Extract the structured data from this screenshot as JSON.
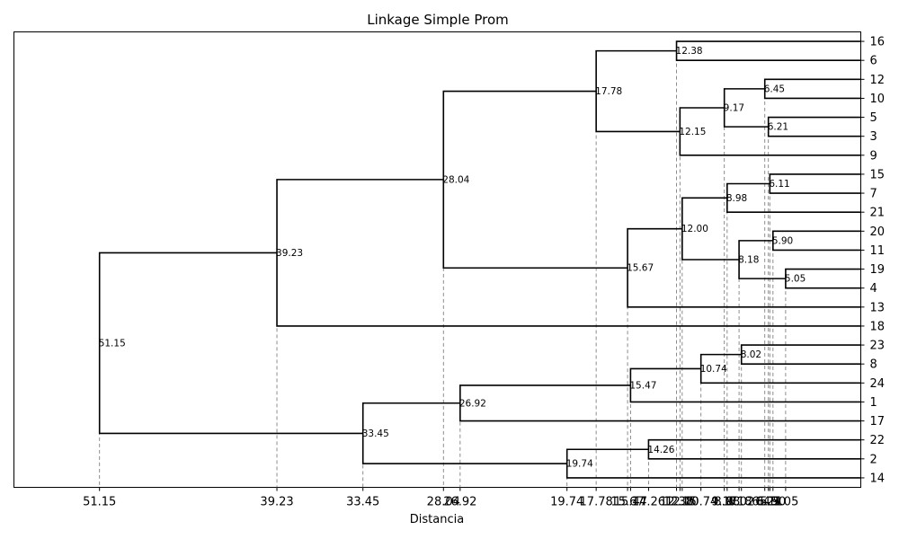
{
  "chart_data": {
    "type": "dendrogram",
    "title": "Linkage Simple Prom",
    "xlabel": "Distancia",
    "orientation": "leaves-right",
    "leaves": [
      "16",
      "6",
      "12",
      "10",
      "5",
      "3",
      "9",
      "15",
      "7",
      "21",
      "20",
      "11",
      "19",
      "4",
      "13",
      "18",
      "23",
      "8",
      "24",
      "1",
      "17",
      "22",
      "2",
      "14"
    ],
    "merges": [
      {
        "id": "n1",
        "children": [
          "16",
          "6"
        ],
        "distance": 12.38,
        "label": "12.38"
      },
      {
        "id": "n2",
        "children": [
          "12",
          "10"
        ],
        "distance": 6.45,
        "label": "6.45"
      },
      {
        "id": "n3",
        "children": [
          "5",
          "3"
        ],
        "distance": 6.21,
        "label": "6.21"
      },
      {
        "id": "n4",
        "children": [
          "n2",
          "n3"
        ],
        "distance": 9.17,
        "label": "9.17"
      },
      {
        "id": "n5",
        "children": [
          "n4",
          "9"
        ],
        "distance": 12.15,
        "label": "12.15"
      },
      {
        "id": "n6",
        "children": [
          "n1",
          "n5"
        ],
        "distance": 17.78,
        "label": "17.78"
      },
      {
        "id": "n7",
        "children": [
          "15",
          "7"
        ],
        "distance": 6.11,
        "label": "6.11"
      },
      {
        "id": "n8",
        "children": [
          "n7",
          "21"
        ],
        "distance": 8.98,
        "label": "8.98"
      },
      {
        "id": "n9",
        "children": [
          "20",
          "11"
        ],
        "distance": 5.9,
        "label": "5.90"
      },
      {
        "id": "n10",
        "children": [
          "19",
          "4"
        ],
        "distance": 5.05,
        "label": "5.05"
      },
      {
        "id": "n11",
        "children": [
          "n9",
          "n10"
        ],
        "distance": 8.18,
        "label": "8.18"
      },
      {
        "id": "n12",
        "children": [
          "n8",
          "n11"
        ],
        "distance": 12.0,
        "label": "12.00"
      },
      {
        "id": "n13",
        "children": [
          "n12",
          "13"
        ],
        "distance": 15.67,
        "label": "15.67"
      },
      {
        "id": "n14",
        "children": [
          "n6",
          "n13"
        ],
        "distance": 28.04,
        "label": "28.04"
      },
      {
        "id": "n15",
        "children": [
          "n14",
          "18"
        ],
        "distance": 39.23,
        "label": "39.23"
      },
      {
        "id": "n16",
        "children": [
          "23",
          "8"
        ],
        "distance": 8.02,
        "label": "8.02"
      },
      {
        "id": "n17",
        "children": [
          "n16",
          "24"
        ],
        "distance": 10.74,
        "label": "10.74"
      },
      {
        "id": "n18",
        "children": [
          "n17",
          "1"
        ],
        "distance": 15.47,
        "label": "15.47"
      },
      {
        "id": "n19",
        "children": [
          "n18",
          "17"
        ],
        "distance": 26.92,
        "label": "26.92"
      },
      {
        "id": "n20",
        "children": [
          "22",
          "2"
        ],
        "distance": 14.26,
        "label": "14.26"
      },
      {
        "id": "n21",
        "children": [
          "n20",
          "14"
        ],
        "distance": 19.74,
        "label": "19.74"
      },
      {
        "id": "n22",
        "children": [
          "n19",
          "n21"
        ],
        "distance": 33.45,
        "label": "33.45"
      },
      {
        "id": "n23",
        "children": [
          "n15",
          "n22"
        ],
        "distance": 51.15,
        "label": "51.15"
      }
    ],
    "xticks": [
      {
        "value": 51.15,
        "label": "51.15"
      },
      {
        "value": 39.23,
        "label": "39.23"
      },
      {
        "value": 33.45,
        "label": "33.45"
      },
      {
        "value": 28.04,
        "label": "28.04"
      },
      {
        "value": 26.92,
        "label": "26.92"
      },
      {
        "value": 19.74,
        "label": "19.74"
      },
      {
        "value": 17.78,
        "label": "17.78"
      },
      {
        "value": 15.67,
        "label": "15.67"
      },
      {
        "value": 15.47,
        "label": "15.47"
      },
      {
        "value": 14.26,
        "label": "14.26"
      },
      {
        "value": 12.38,
        "label": "12.38"
      },
      {
        "value": 12.15,
        "label": "12.15"
      },
      {
        "value": 12.0,
        "label": "12.00"
      },
      {
        "value": 10.74,
        "label": "10.74"
      },
      {
        "value": 9.17,
        "label": "9.17"
      },
      {
        "value": 8.98,
        "label": "8.98"
      },
      {
        "value": 8.18,
        "label": "8.18"
      },
      {
        "value": 8.02,
        "label": "8.02"
      },
      {
        "value": 6.45,
        "label": "6.45"
      },
      {
        "value": 6.21,
        "label": "6.21"
      },
      {
        "value": 6.11,
        "label": "6.11"
      },
      {
        "value": 5.9,
        "label": "5.90"
      },
      {
        "value": 5.05,
        "label": "5.05"
      }
    ],
    "xlim": [
      56.9,
      0
    ],
    "colors": {
      "links": "#000000",
      "guides": "#808080"
    },
    "grid": false,
    "legend": "none"
  }
}
